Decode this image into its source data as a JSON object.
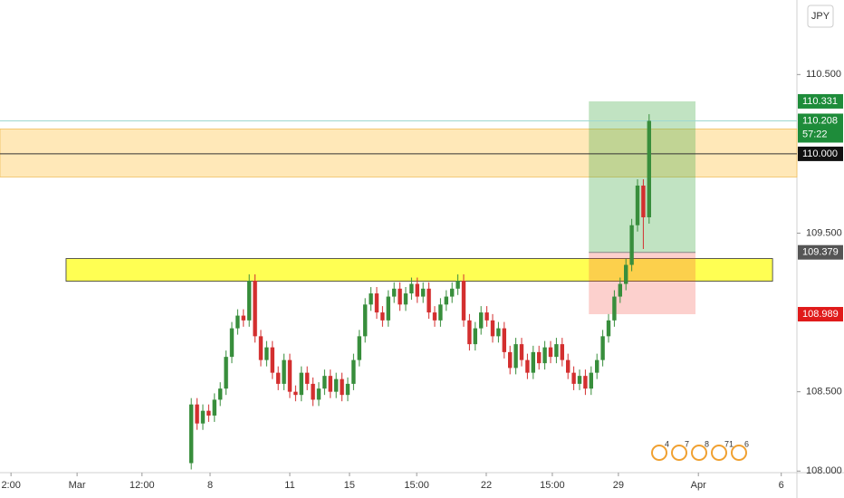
{
  "chart_data": {
    "type": "candlestick",
    "badge": "JPY",
    "up_color": "#388e3c",
    "down_color": "#d32f2f",
    "x": [
      33,
      34,
      35,
      36,
      37,
      38,
      39,
      40,
      41,
      42,
      43,
      44,
      45,
      46,
      47,
      48,
      49,
      50,
      51,
      52,
      53,
      54,
      55,
      56,
      57,
      58,
      59,
      60,
      61,
      62,
      63,
      64,
      65,
      66,
      67,
      68,
      69,
      70,
      71,
      72,
      73,
      74,
      75,
      76,
      77,
      78,
      79,
      80,
      81,
      82,
      83,
      84,
      85,
      86,
      87,
      88,
      89,
      90,
      91,
      92,
      93,
      94,
      95,
      96,
      97,
      98,
      99,
      100,
      101,
      102,
      103,
      104,
      105,
      106,
      107,
      108,
      109,
      110,
      111,
      112
    ],
    "open": [
      108.05,
      108.42,
      108.3,
      108.38,
      108.35,
      108.45,
      108.52,
      108.72,
      108.9,
      108.98,
      108.95,
      109.2,
      108.85,
      108.7,
      108.78,
      108.62,
      108.55,
      108.7,
      108.5,
      108.48,
      108.62,
      108.55,
      108.45,
      108.52,
      108.6,
      108.5,
      108.58,
      108.48,
      108.55,
      108.7,
      108.85,
      109.05,
      109.12,
      109.0,
      108.95,
      109.1,
      109.15,
      109.05,
      109.12,
      109.18,
      109.1,
      109.15,
      109.0,
      108.95,
      109.05,
      109.1,
      109.15,
      109.2,
      108.95,
      108.8,
      108.9,
      109.0,
      108.95,
      108.85,
      108.9,
      108.75,
      108.65,
      108.8,
      108.7,
      108.62,
      108.75,
      108.68,
      108.78,
      108.72,
      108.8,
      108.7,
      108.62,
      108.55,
      108.6,
      108.52,
      108.62,
      108.7,
      108.85,
      108.95,
      109.1,
      109.18,
      109.3,
      109.55,
      109.8,
      109.6
    ],
    "high": [
      108.46,
      108.46,
      108.42,
      108.42,
      108.49,
      108.56,
      108.76,
      108.94,
      109.02,
      109.02,
      109.24,
      109.24,
      108.89,
      108.82,
      108.82,
      108.66,
      108.74,
      108.74,
      108.54,
      108.66,
      108.66,
      108.59,
      108.56,
      108.64,
      108.64,
      108.62,
      108.62,
      108.59,
      108.74,
      108.89,
      109.09,
      109.16,
      109.16,
      109.04,
      109.14,
      109.19,
      109.19,
      109.16,
      109.22,
      109.22,
      109.19,
      109.19,
      109.04,
      109.09,
      109.14,
      109.19,
      109.24,
      109.24,
      108.99,
      108.94,
      109.04,
      109.04,
      108.99,
      108.94,
      108.94,
      108.79,
      108.84,
      108.84,
      108.74,
      108.79,
      108.79,
      108.82,
      108.82,
      108.84,
      108.84,
      108.74,
      108.66,
      108.64,
      108.64,
      108.66,
      108.74,
      108.89,
      108.99,
      109.14,
      109.22,
      109.34,
      109.59,
      109.84,
      109.84,
      110.25
    ],
    "low": [
      108.01,
      108.26,
      108.26,
      108.31,
      108.31,
      108.41,
      108.48,
      108.68,
      108.86,
      108.91,
      108.91,
      108.81,
      108.66,
      108.66,
      108.58,
      108.51,
      108.51,
      108.46,
      108.44,
      108.44,
      108.51,
      108.41,
      108.41,
      108.48,
      108.46,
      108.46,
      108.44,
      108.44,
      108.51,
      108.66,
      108.81,
      109.01,
      108.96,
      108.91,
      108.91,
      109.06,
      109.01,
      109.01,
      109.08,
      109.06,
      109.06,
      108.96,
      108.91,
      108.91,
      109.01,
      109.06,
      109.11,
      108.91,
      108.76,
      108.76,
      108.86,
      108.91,
      108.81,
      108.81,
      108.71,
      108.61,
      108.61,
      108.66,
      108.58,
      108.58,
      108.64,
      108.64,
      108.68,
      108.68,
      108.66,
      108.58,
      108.51,
      108.51,
      108.48,
      108.48,
      108.58,
      108.66,
      108.81,
      108.91,
      109.06,
      109.14,
      109.26,
      109.51,
      109.4,
      109.56
    ],
    "close": [
      108.42,
      108.3,
      108.38,
      108.35,
      108.45,
      108.52,
      108.72,
      108.9,
      108.98,
      108.95,
      109.2,
      108.85,
      108.7,
      108.78,
      108.62,
      108.55,
      108.7,
      108.5,
      108.48,
      108.62,
      108.55,
      108.45,
      108.52,
      108.6,
      108.5,
      108.58,
      108.48,
      108.55,
      108.7,
      108.85,
      109.05,
      109.12,
      109.0,
      108.95,
      109.1,
      109.15,
      109.05,
      109.12,
      109.18,
      109.1,
      109.15,
      109.0,
      108.95,
      109.05,
      109.1,
      109.15,
      109.2,
      108.95,
      108.8,
      108.9,
      109.0,
      108.95,
      108.85,
      108.9,
      108.75,
      108.65,
      108.8,
      108.7,
      108.62,
      108.75,
      108.68,
      108.78,
      108.72,
      108.8,
      108.7,
      108.62,
      108.55,
      108.6,
      108.52,
      108.62,
      108.7,
      108.85,
      108.95,
      109.1,
      109.18,
      109.3,
      109.55,
      109.8,
      109.6,
      110.208
    ],
    "xlim": [
      0,
      137.5
    ],
    "xticks": [
      {
        "value": 1.9,
        "label": "2:00"
      },
      {
        "value": 13.3,
        "label": "Mar"
      },
      {
        "value": 24.5,
        "label": "12:00"
      },
      {
        "value": 36.25,
        "label": "8"
      },
      {
        "value": 50,
        "label": "11"
      },
      {
        "value": 60.3,
        "label": "15"
      },
      {
        "value": 71.9,
        "label": "15:00"
      },
      {
        "value": 83.9,
        "label": "22"
      },
      {
        "value": 95.3,
        "label": "15:00"
      },
      {
        "value": 106.7,
        "label": "29"
      },
      {
        "value": 120.5,
        "label": "Apr"
      },
      {
        "value": 134.8,
        "label": "6"
      }
    ],
    "ylim": [
      107.99,
      110.97
    ],
    "yticks": [
      {
        "value": 110.5,
        "label": "110.500"
      },
      {
        "value": 109.5,
        "label": "109.500"
      },
      {
        "value": 108.5,
        "label": "108.500"
      },
      {
        "value": 108,
        "label": "108.000"
      }
    ],
    "zones": [
      {
        "x": [
          0,
          137.5
        ],
        "y": [
          109.854,
          110.157
        ],
        "color": "#ffe0a0"
      },
      {
        "x": [
          11.4,
          133.3
        ],
        "y": [
          109.197,
          109.34
        ],
        "color": "#ffff40"
      }
    ],
    "position": {
      "x": [
        101.6,
        120
      ],
      "target": 110.331,
      "entry": 109.379,
      "stop": 108.989
    },
    "hlines": [
      {
        "value": 110,
        "color": "#333333"
      },
      {
        "value": 110.208,
        "color": "#9ed8d0"
      }
    ],
    "price_labels": [
      {
        "value": 110.331,
        "label": "110.331",
        "color": "#1e8c3a"
      },
      {
        "value": 110.208,
        "label": "110.208",
        "color": "#1e8c3a",
        "countdown": "57:22"
      },
      {
        "value": 110,
        "label": "110.000",
        "color": "#111111"
      },
      {
        "value": 109.379,
        "label": "109.379",
        "color": "#555555"
      },
      {
        "value": 108.989,
        "label": "108.989",
        "color": "#e01b1b"
      }
    ],
    "events": [
      "4",
      "7",
      "8",
      "71",
      "6"
    ]
  }
}
